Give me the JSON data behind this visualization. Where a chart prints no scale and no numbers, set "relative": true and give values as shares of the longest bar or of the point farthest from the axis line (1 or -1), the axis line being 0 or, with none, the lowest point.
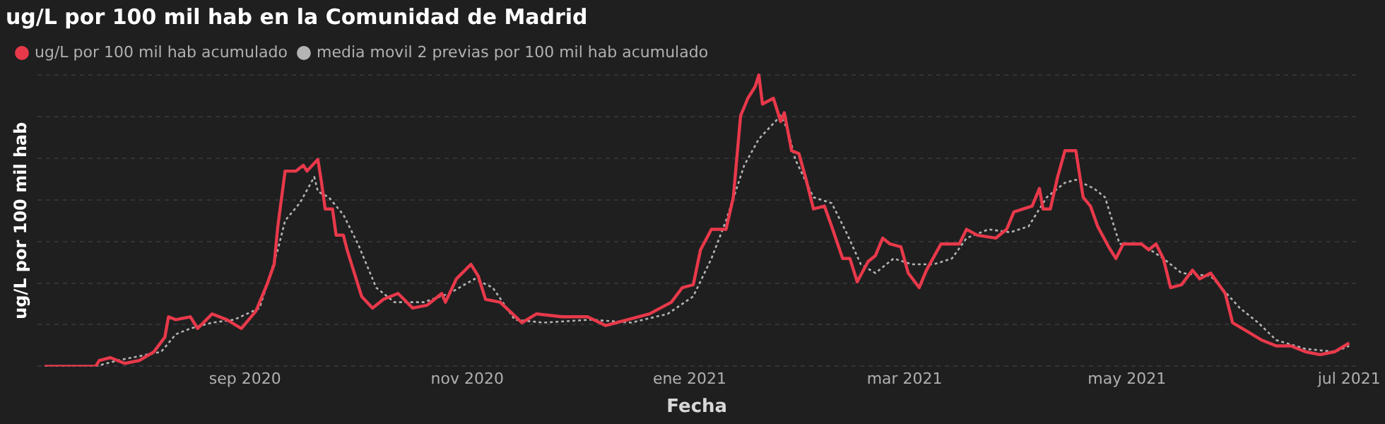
{
  "chart_data": {
    "type": "line",
    "title": "ug/L por 100 mil hab en la Comunidad de Madrid",
    "xlabel": "Fecha",
    "ylabel": "ug/L por 100 mil hab",
    "relative": true,
    "grid": "y",
    "legend": "top left",
    "marker": "none",
    "xlim": [
      "2020-07-06",
      "2021-07-03"
    ],
    "xticks": [
      {
        "value": "2020-09-01",
        "label": "sep 2020"
      },
      {
        "value": "2020-11-01",
        "label": "nov 2020"
      },
      {
        "value": "2021-01-01",
        "label": "ene 2021"
      },
      {
        "value": "2021-03-01",
        "label": "mar 2021"
      },
      {
        "value": "2021-05-01",
        "label": "may 2021"
      },
      {
        "value": "2021-07-01",
        "label": "jul 2021"
      }
    ],
    "series": [
      {
        "name": "ug/L por 100 mil hab acumulado",
        "color": "#e8394a",
        "line_style": "solid",
        "x": [
          "2020-07-08",
          "2020-07-22",
          "2020-07-23",
          "2020-07-26",
          "2020-07-30",
          "2020-08-03",
          "2020-08-07",
          "2020-08-10",
          "2020-08-11",
          "2020-08-13",
          "2020-08-17",
          "2020-08-19",
          "2020-08-23",
          "2020-08-27",
          "2020-08-31",
          "2020-09-04",
          "2020-09-07",
          "2020-09-09",
          "2020-09-10",
          "2020-09-12",
          "2020-09-15",
          "2020-09-17",
          "2020-09-18",
          "2020-09-21",
          "2020-09-22",
          "2020-09-23",
          "2020-09-25",
          "2020-09-26",
          "2020-09-28",
          "2020-09-29",
          "2020-10-03",
          "2020-10-06",
          "2020-10-09",
          "2020-10-13",
          "2020-10-17",
          "2020-10-21",
          "2020-10-25",
          "2020-10-26",
          "2020-10-29",
          "2020-11-02",
          "2020-11-04",
          "2020-11-06",
          "2020-11-10",
          "2020-11-16",
          "2020-11-20",
          "2020-11-27",
          "2020-12-04",
          "2020-12-09",
          "2020-12-15",
          "2020-12-21",
          "2020-12-27",
          "2020-12-30",
          "2021-01-02",
          "2021-01-04",
          "2021-01-07",
          "2021-01-11",
          "2021-01-13",
          "2021-01-15",
          "2021-01-17",
          "2021-01-19",
          "2021-01-20",
          "2021-01-21",
          "2021-01-24",
          "2021-01-26",
          "2021-01-27",
          "2021-01-29",
          "2021-01-31",
          "2021-02-02",
          "2021-02-04",
          "2021-02-07",
          "2021-02-09",
          "2021-02-12",
          "2021-02-14",
          "2021-02-16",
          "2021-02-19",
          "2021-02-21",
          "2021-02-23",
          "2021-02-25",
          "2021-02-28",
          "2021-03-02",
          "2021-03-05",
          "2021-03-07",
          "2021-03-11",
          "2021-03-16",
          "2021-03-18",
          "2021-03-21",
          "2021-03-26",
          "2021-03-29",
          "2021-03-31",
          "2021-04-05",
          "2021-04-07",
          "2021-04-08",
          "2021-04-10",
          "2021-04-12",
          "2021-04-14",
          "2021-04-17",
          "2021-04-19",
          "2021-04-21",
          "2021-04-23",
          "2021-04-26",
          "2021-04-28",
          "2021-04-30",
          "2021-05-05",
          "2021-05-07",
          "2021-05-09",
          "2021-05-11",
          "2021-05-13",
          "2021-05-16",
          "2021-05-19",
          "2021-05-21",
          "2021-05-24",
          "2021-05-28",
          "2021-05-30",
          "2021-06-03",
          "2021-06-07",
          "2021-06-11",
          "2021-06-15",
          "2021-06-19",
          "2021-06-23",
          "2021-06-27",
          "2021-07-01"
        ],
        "values": [
          0,
          0,
          0.02,
          0.03,
          0.01,
          0.02,
          0.05,
          0.1,
          0.17,
          0.16,
          0.17,
          0.13,
          0.18,
          0.16,
          0.13,
          0.19,
          0.28,
          0.35,
          0.48,
          0.67,
          0.67,
          0.69,
          0.67,
          0.71,
          0.63,
          0.54,
          0.54,
          0.45,
          0.45,
          0.4,
          0.24,
          0.2,
          0.23,
          0.25,
          0.2,
          0.21,
          0.25,
          0.22,
          0.3,
          0.35,
          0.31,
          0.23,
          0.22,
          0.15,
          0.18,
          0.17,
          0.17,
          0.14,
          0.16,
          0.18,
          0.22,
          0.27,
          0.28,
          0.4,
          0.47,
          0.47,
          0.58,
          0.86,
          0.92,
          0.96,
          1,
          0.9,
          0.92,
          0.84,
          0.87,
          0.74,
          0.73,
          0.64,
          0.54,
          0.55,
          0.48,
          0.37,
          0.37,
          0.29,
          0.36,
          0.38,
          0.44,
          0.42,
          0.41,
          0.32,
          0.27,
          0.33,
          0.42,
          0.42,
          0.47,
          0.45,
          0.44,
          0.47,
          0.53,
          0.55,
          0.61,
          0.54,
          0.54,
          0.65,
          0.74,
          0.74,
          0.58,
          0.55,
          0.48,
          0.41,
          0.37,
          0.42,
          0.42,
          0.4,
          0.42,
          0.37,
          0.27,
          0.28,
          0.33,
          0.3,
          0.32,
          0.25,
          0.15,
          0.12,
          0.09,
          0.07,
          0.07,
          0.05,
          0.04,
          0.05,
          0.08
        ]
      },
      {
        "name": "media movil 2 previas por 100 mil hab acumulado",
        "color": "#b4b4b4",
        "line_style": "dotted",
        "x": [
          "2020-07-08",
          "2020-07-22",
          "2020-07-28",
          "2020-08-09",
          "2020-08-13",
          "2020-08-17",
          "2020-08-23",
          "2020-08-29",
          "2020-09-05",
          "2020-09-10",
          "2020-09-12",
          "2020-09-16",
          "2020-09-20",
          "2020-09-21",
          "2020-09-24",
          "2020-09-28",
          "2020-10-02",
          "2020-10-07",
          "2020-10-12",
          "2020-10-20",
          "2020-10-27",
          "2020-11-03",
          "2020-11-08",
          "2020-11-14",
          "2020-11-22",
          "2020-12-05",
          "2020-12-16",
          "2020-12-26",
          "2021-01-02",
          "2021-01-07",
          "2021-01-11",
          "2021-01-16",
          "2021-01-20",
          "2021-01-26",
          "2021-01-28",
          "2021-01-30",
          "2021-02-04",
          "2021-02-09",
          "2021-02-13",
          "2021-02-17",
          "2021-02-21",
          "2021-02-26",
          "2021-03-03",
          "2021-03-09",
          "2021-03-14",
          "2021-03-18",
          "2021-03-24",
          "2021-03-30",
          "2021-04-04",
          "2021-04-09",
          "2021-04-14",
          "2021-04-17",
          "2021-04-22",
          "2021-04-25",
          "2021-04-29",
          "2021-05-05",
          "2021-05-11",
          "2021-05-16",
          "2021-05-24",
          "2021-06-01",
          "2021-06-06",
          "2021-06-11",
          "2021-06-19",
          "2021-06-27",
          "2021-07-01"
        ],
        "values": [
          0,
          0,
          0.02,
          0.05,
          0.11,
          0.13,
          0.15,
          0.16,
          0.2,
          0.4,
          0.5,
          0.56,
          0.65,
          0.6,
          0.58,
          0.52,
          0.42,
          0.27,
          0.22,
          0.22,
          0.25,
          0.3,
          0.27,
          0.16,
          0.15,
          0.16,
          0.15,
          0.18,
          0.24,
          0.37,
          0.5,
          0.69,
          0.78,
          0.86,
          0.81,
          0.71,
          0.58,
          0.56,
          0.46,
          0.35,
          0.32,
          0.37,
          0.35,
          0.35,
          0.37,
          0.44,
          0.47,
          0.46,
          0.48,
          0.58,
          0.63,
          0.64,
          0.61,
          0.58,
          0.42,
          0.42,
          0.37,
          0.32,
          0.31,
          0.2,
          0.15,
          0.09,
          0.06,
          0.05,
          0.07
        ]
      }
    ]
  }
}
